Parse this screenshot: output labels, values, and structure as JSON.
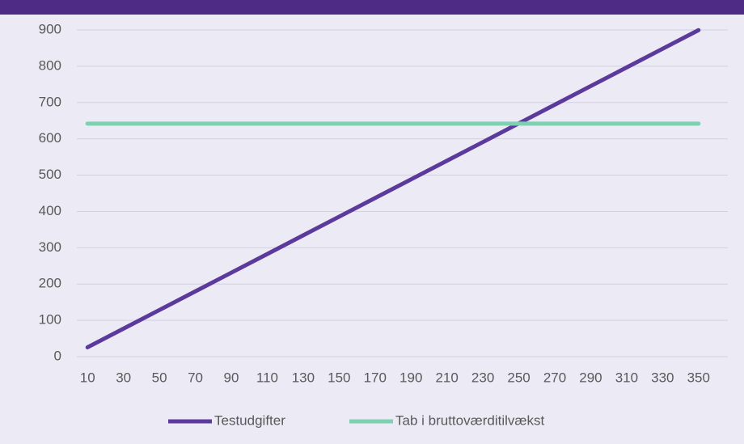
{
  "chart_data": {
    "type": "line",
    "categories": [
      10,
      30,
      50,
      70,
      90,
      110,
      130,
      150,
      170,
      190,
      210,
      230,
      250,
      270,
      290,
      310,
      330,
      350
    ],
    "series": [
      {
        "name": "Testudgifter",
        "color": "#5b3a9b",
        "values": [
          25.7,
          77.1,
          128.5,
          179.9,
          231.3,
          282.7,
          334.1,
          385.5,
          436.9,
          488.3,
          539.7,
          591.1,
          642.5,
          693.9,
          745.3,
          796.7,
          848.1,
          899.5
        ]
      },
      {
        "name": "Tab i bruttoværditilvækst",
        "color": "#7fd0b2",
        "values": [
          642,
          642,
          642,
          642,
          642,
          642,
          642,
          642,
          642,
          642,
          642,
          642,
          642,
          642,
          642,
          642,
          642,
          642
        ]
      }
    ],
    "ylim": [
      0,
      900
    ],
    "yticks": [
      0,
      100,
      200,
      300,
      400,
      500,
      600,
      700,
      800,
      900
    ],
    "grid": true,
    "legend": "bottom"
  }
}
